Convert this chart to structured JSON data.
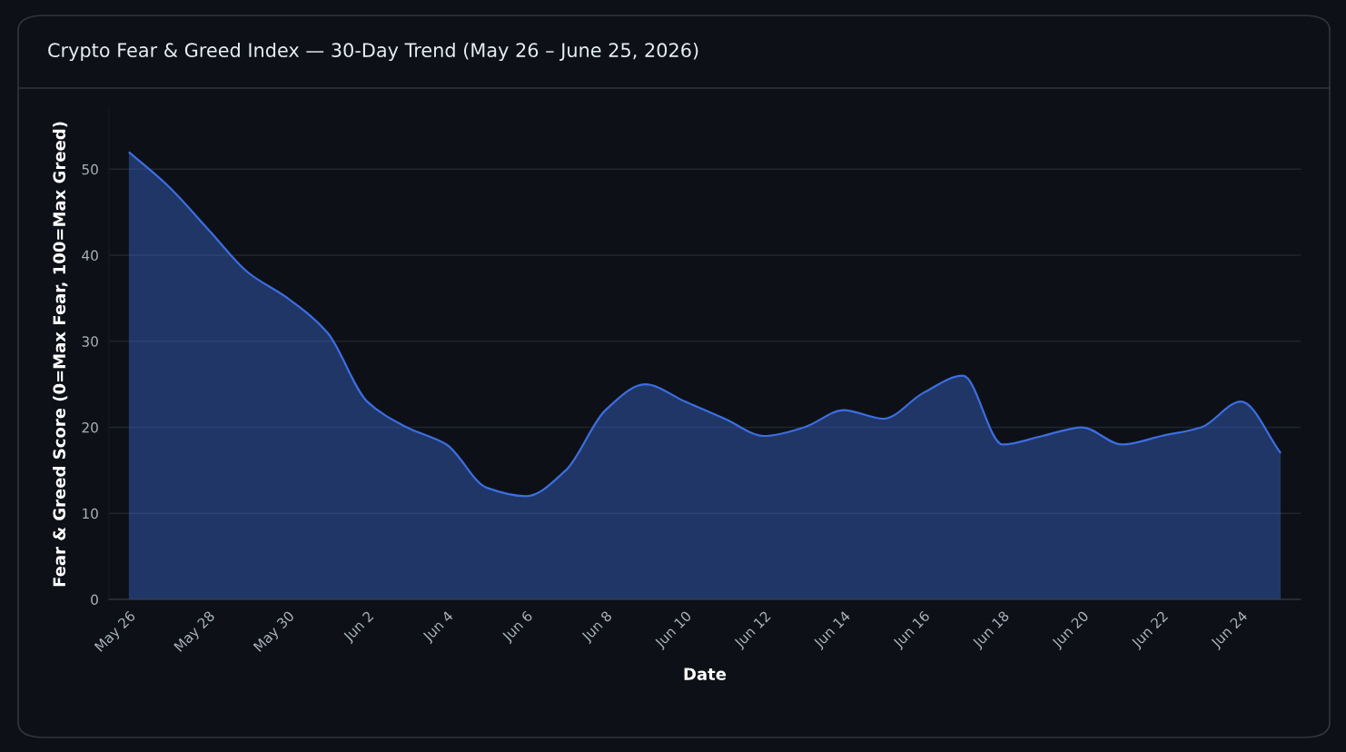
{
  "chart_data": {
    "type": "area",
    "title": "Crypto Fear & Greed Index — 30-Day Trend (May 26 – June 25, 2026)",
    "xlabel": "Date",
    "ylabel": "Fear & Greed Score (0=Max Fear, 100=Max Greed)",
    "categories": [
      "May 26",
      null,
      "May 28",
      null,
      "May 30",
      null,
      "Jun 2",
      null,
      "Jun 4",
      null,
      "Jun 6",
      null,
      "Jun 8",
      null,
      "Jun 10",
      null,
      "Jun 12",
      null,
      "Jun 14",
      null,
      "Jun 16",
      null,
      "Jun 18",
      null,
      "Jun 20",
      null,
      "Jun 22",
      null,
      "Jun 24",
      null
    ],
    "series": [
      {
        "color": "#3d6ee0",
        "values": [
          52,
          48,
          43,
          38,
          35,
          31,
          23,
          20,
          18,
          13,
          12,
          15,
          22,
          25,
          23,
          21,
          19,
          20,
          22,
          21,
          24,
          26,
          18,
          19,
          20,
          18,
          19,
          20,
          23,
          17
        ]
      }
    ],
    "ylim": [
      0,
      57
    ],
    "yticks": [
      0,
      10,
      20,
      30,
      40,
      50
    ],
    "grid": "y",
    "marker": "none",
    "line_style": "solid"
  }
}
